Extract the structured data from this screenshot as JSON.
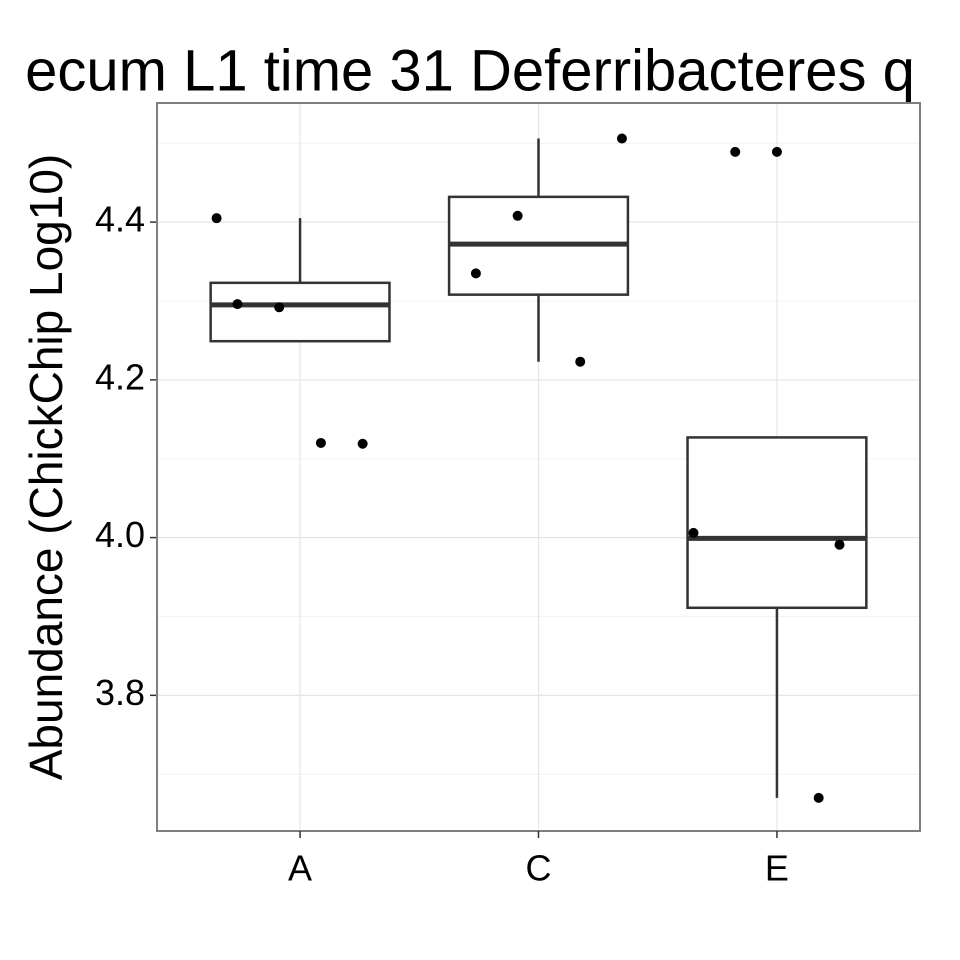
{
  "chart_data": {
    "type": "boxplot",
    "title": "ecum L1 time 31 Deferribacteres q",
    "ylabel": "Abundance (ChickChip Log10)",
    "categories": [
      "A",
      "C",
      "E"
    ],
    "boxes": [
      {
        "whisker_low": 4.249,
        "q1": 4.249,
        "median": 4.295,
        "q3": 4.323,
        "whisker_high": 4.405
      },
      {
        "whisker_low": 4.223,
        "q1": 4.308,
        "median": 4.372,
        "q3": 4.432,
        "whisker_high": 4.506
      },
      {
        "whisker_low": 3.67,
        "q1": 3.911,
        "median": 3.999,
        "q3": 4.127,
        "whisker_high": 4.127
      }
    ],
    "points": [
      [
        4.405,
        4.119,
        4.12,
        4.292,
        4.296
      ],
      [
        4.408,
        4.335,
        4.506,
        4.223
      ],
      [
        3.67,
        4.489,
        4.489,
        4.006,
        3.991
      ]
    ],
    "ylim": [
      3.628,
      4.551
    ],
    "yticks": [
      3.8,
      {
        "value": 4,
        "label": "4.0"
      },
      4.2,
      4.4
    ],
    "minor_yticks": [
      3.7,
      3.9,
      4.1,
      4.3,
      4.5
    ],
    "grid": true
  }
}
